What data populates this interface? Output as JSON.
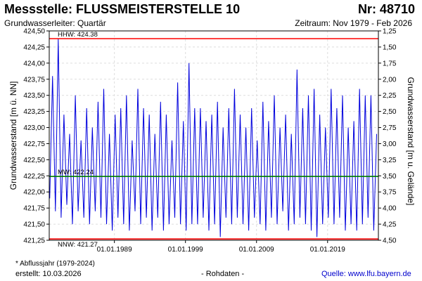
{
  "header": {
    "title": "Messstelle: FLUSSMEISTERSTELLE 10",
    "nr": "Nr: 48710",
    "aquifer": "Grundwasserleiter: Quartär",
    "period": "Zeitraum: Nov 1979 - Feb 2026"
  },
  "footer": {
    "footnote": "* Abflussjahr (1979-2024)",
    "created": "erstellt:  10.03.2026",
    "rawdata": "- Rohdaten -",
    "source": "Quelle: www.lfu.bayern.de"
  },
  "colors": {
    "series": "#0000dd",
    "hhw_line": "#ff0000",
    "nnw_line": "#ff0000",
    "mw_line": "#008000",
    "grid": "#dddddd"
  },
  "chart_data": {
    "type": "line",
    "ylabel_left": "Grundwasserstand [m ü. NN]",
    "ylabel_right": "Grundwasserstand [m u. Gelände]",
    "ylim": [
      421.25,
      424.5
    ],
    "yticks_left": [
      "424,50",
      "424,25",
      "424,00",
      "423,75",
      "423,50",
      "423,25",
      "423,00",
      "422,75",
      "422,50",
      "422,25",
      "422,00",
      "421,75",
      "421,50",
      "421,25"
    ],
    "yticks_right": [
      "1,25",
      "1,50",
      "1,75",
      "2,00",
      "2,25",
      "2,50",
      "2,75",
      "3,00",
      "3,25",
      "3,50",
      "3,75",
      "4,00",
      "4,25",
      "4,50"
    ],
    "xlim": [
      1979.83,
      2026.15
    ],
    "xticks": [
      {
        "x": 1989.0,
        "label": "01.01.1989"
      },
      {
        "x": 1999.0,
        "label": "01.01.1999"
      },
      {
        "x": 2009.0,
        "label": "01.01.2009"
      },
      {
        "x": 2019.0,
        "label": "01.01.2019"
      }
    ],
    "grid": true,
    "reference_lines": [
      {
        "label": "HHW: 424.38",
        "value": 424.38
      },
      {
        "label": "MW: 422.24",
        "value": 422.24
      },
      {
        "label": "NNW: 421.27",
        "value": 421.27
      }
    ],
    "series": [
      {
        "x": [
          1979.9,
          1980.3,
          1980.7,
          1981.1,
          1981.5,
          1981.9,
          1982.3,
          1982.7,
          1983.1,
          1983.5,
          1983.9,
          1984.3,
          1984.7,
          1985.1,
          1985.5,
          1985.9,
          1986.3,
          1986.7,
          1987.1,
          1987.5,
          1987.9,
          1988.3,
          1988.7,
          1989.1,
          1989.5,
          1989.9,
          1990.3,
          1990.7,
          1991.1,
          1991.5,
          1991.9,
          1992.3,
          1992.7,
          1993.1,
          1993.5,
          1993.9,
          1994.3,
          1994.7,
          1995.1,
          1995.5,
          1995.9,
          1996.3,
          1996.7,
          1997.1,
          1997.5,
          1997.9,
          1998.3,
          1998.7,
          1999.1,
          1999.5,
          1999.9,
          2000.3,
          2000.7,
          2001.1,
          2001.5,
          2001.9,
          2002.3,
          2002.7,
          2003.1,
          2003.5,
          2003.9,
          2004.3,
          2004.7,
          2005.1,
          2005.5,
          2005.9,
          2006.3,
          2006.7,
          2007.1,
          2007.5,
          2007.9,
          2008.3,
          2008.7,
          2009.1,
          2009.5,
          2009.9,
          2010.3,
          2010.7,
          2011.1,
          2011.5,
          2011.9,
          2012.3,
          2012.7,
          2013.1,
          2013.5,
          2013.9,
          2014.3,
          2014.7,
          2015.1,
          2015.5,
          2015.9,
          2016.3,
          2016.7,
          2017.1,
          2017.5,
          2017.9,
          2018.3,
          2018.7,
          2019.1,
          2019.5,
          2019.9,
          2020.3,
          2020.7,
          2021.1,
          2021.5,
          2021.9,
          2022.3,
          2022.7,
          2023.1,
          2023.5,
          2023.9,
          2024.3,
          2024.7,
          2025.1,
          2025.5,
          2025.9
        ],
        "y": [
          421.9,
          423.8,
          421.7,
          424.38,
          421.6,
          423.2,
          421.8,
          422.9,
          421.5,
          423.5,
          421.7,
          422.8,
          421.6,
          423.3,
          421.5,
          423.0,
          421.7,
          423.4,
          421.6,
          423.6,
          421.5,
          422.9,
          421.4,
          423.2,
          421.6,
          423.3,
          421.5,
          423.5,
          421.4,
          422.8,
          421.7,
          423.6,
          421.5,
          423.3,
          421.6,
          423.2,
          421.4,
          422.9,
          421.6,
          423.4,
          421.4,
          423.2,
          421.5,
          422.8,
          421.6,
          423.7,
          421.5,
          423.1,
          421.4,
          424.0,
          421.5,
          423.3,
          421.5,
          423.3,
          421.6,
          423.1,
          421.4,
          423.2,
          421.5,
          423.4,
          421.3,
          423.0,
          421.6,
          423.3,
          421.5,
          423.6,
          421.6,
          423.2,
          421.5,
          423.0,
          421.4,
          423.3,
          421.6,
          422.8,
          421.5,
          423.4,
          421.4,
          423.1,
          421.6,
          423.5,
          421.5,
          423.0,
          421.7,
          423.2,
          421.4,
          422.9,
          421.5,
          423.9,
          421.6,
          423.3,
          421.5,
          423.5,
          421.4,
          423.6,
          421.3,
          423.2,
          421.5,
          423.0,
          421.6,
          423.6,
          421.5,
          423.3,
          421.6,
          423.5,
          421.4,
          423.0,
          421.5,
          423.1,
          421.4,
          423.6,
          421.5,
          423.5,
          421.6,
          423.5,
          421.4,
          422.9
        ]
      }
    ]
  }
}
